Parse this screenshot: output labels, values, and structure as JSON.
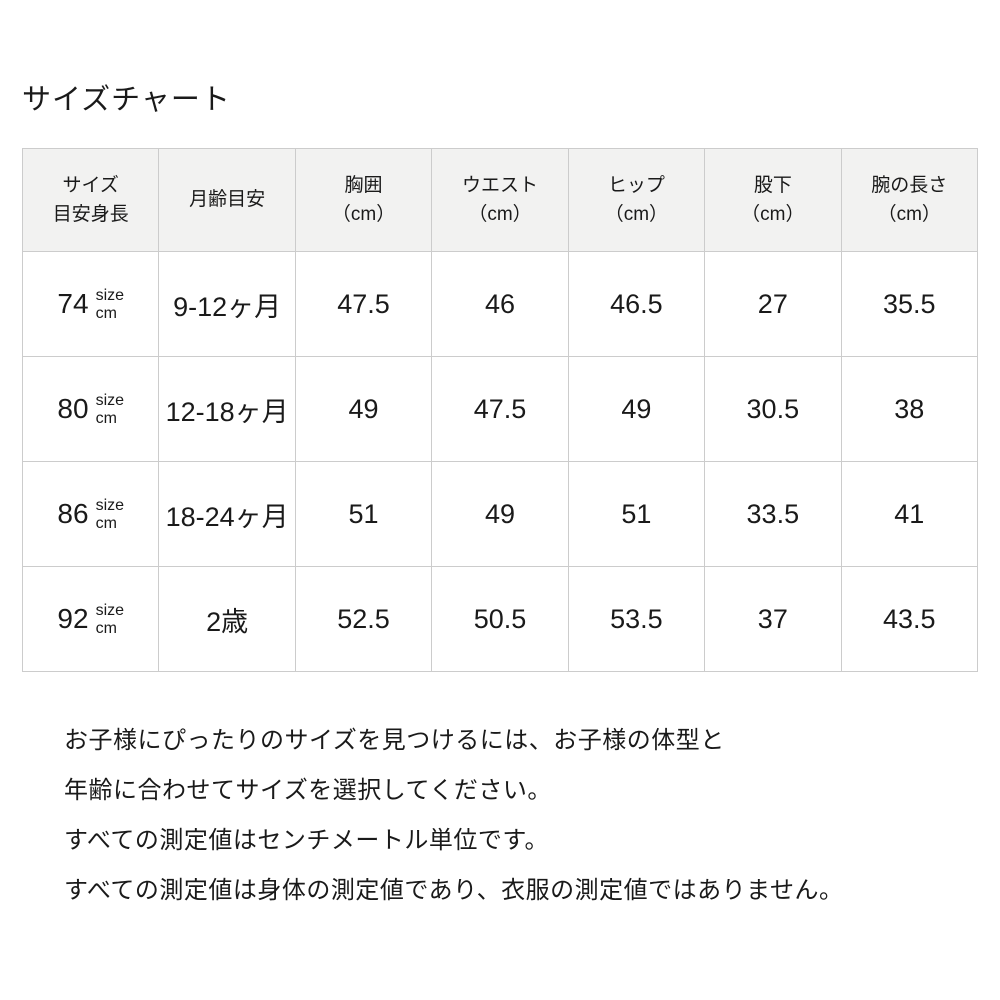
{
  "page_title": "サイズチャート",
  "table": {
    "headers": [
      {
        "line1": "サイズ",
        "line2": "目安身長"
      },
      {
        "line1": "月齢目安",
        "line2": ""
      },
      {
        "line1": "胸囲",
        "line2": "（cm）"
      },
      {
        "line1": "ウエスト",
        "line2": "（cm）"
      },
      {
        "line1": "ヒップ",
        "line2": "（cm）"
      },
      {
        "line1": "股下",
        "line2": "（cm）"
      },
      {
        "line1": "腕の長さ",
        "line2": "（cm）"
      }
    ],
    "rows": [
      {
        "size": "74",
        "unit_top": "size",
        "unit_bottom": "cm",
        "age": "9-12ヶ月",
        "chest": "47.5",
        "waist": "46",
        "hip": "46.5",
        "inseam": "27",
        "arm_length": "35.5"
      },
      {
        "size": "80",
        "unit_top": "size",
        "unit_bottom": "cm",
        "age": "12-18ヶ月",
        "chest": "49",
        "waist": "47.5",
        "hip": "49",
        "inseam": "30.5",
        "arm_length": "38"
      },
      {
        "size": "86",
        "unit_top": "size",
        "unit_bottom": "cm",
        "age": "18-24ヶ月",
        "chest": "51",
        "waist": "49",
        "hip": "51",
        "inseam": "33.5",
        "arm_length": "41"
      },
      {
        "size": "92",
        "unit_top": "size",
        "unit_bottom": "cm",
        "age": "2歳",
        "chest": "52.5",
        "waist": "50.5",
        "hip": "53.5",
        "inseam": "37",
        "arm_length": "43.5"
      }
    ]
  },
  "notes": [
    "お子様にぴったりのサイズを見つけるには、お子様の体型と",
    "年齢に合わせてサイズを選択してください。",
    "すべての測定値はセンチメートル単位です。",
    "すべての測定値は身体の測定値であり、衣服の測定値ではありません。"
  ],
  "colors": {
    "header_bg": "#f2f2f1",
    "border": "#cccccc",
    "text": "#1a1a1a",
    "background": "#ffffff"
  }
}
